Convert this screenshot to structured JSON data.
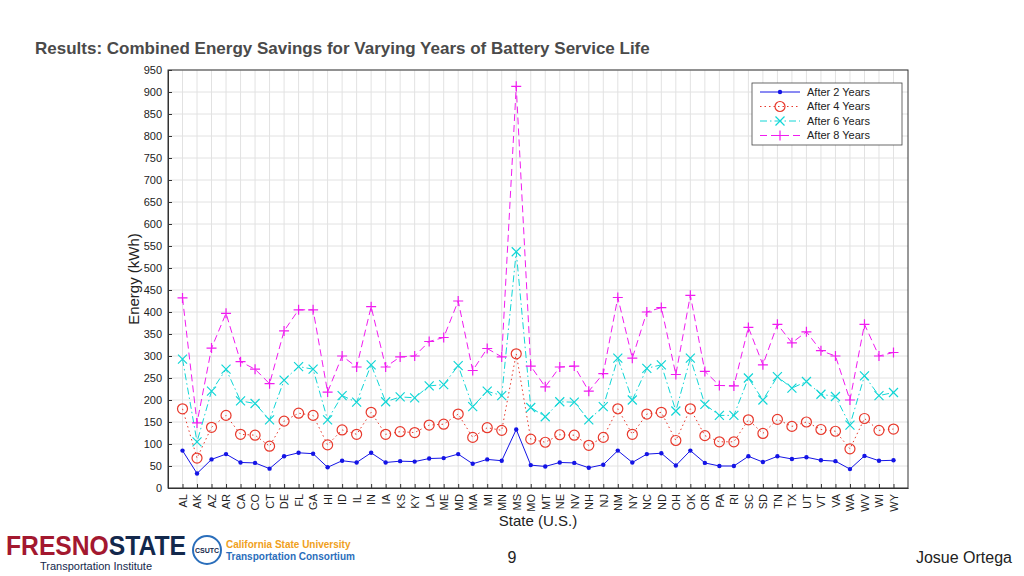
{
  "chart_data": {
    "type": "line",
    "title": "Results: Combined Energy Savings for Varying Years of Battery Service Life",
    "x_label": "State (U.S.)",
    "y_label": "Energy (kWh)",
    "categories": [
      "AL",
      "AK",
      "AZ",
      "AR",
      "CA",
      "CO",
      "CT",
      "DE",
      "FL",
      "GA",
      "HI",
      "ID",
      "IL",
      "IN",
      "IA",
      "KS",
      "KY",
      "LA",
      "ME",
      "MD",
      "MA",
      "MI",
      "MN",
      "MS",
      "MO",
      "MT",
      "NE",
      "NV",
      "NH",
      "NJ",
      "NM",
      "NY",
      "NC",
      "ND",
      "OH",
      "OK",
      "OR",
      "PA",
      "RI",
      "SC",
      "SD",
      "TN",
      "TX",
      "UT",
      "VT",
      "VA",
      "WA",
      "WV",
      "WI",
      "WY"
    ],
    "series": [
      {
        "name": "After 2 Years",
        "color": "#1414e6",
        "marker": "point",
        "line_style": "solid",
        "values": [
          85,
          33,
          65,
          77,
          58,
          57,
          44,
          72,
          80,
          78,
          47,
          62,
          58,
          80,
          58,
          61,
          60,
          67,
          68,
          77,
          55,
          65,
          62,
          133,
          52,
          49,
          58,
          57,
          46,
          53,
          85,
          58,
          77,
          79,
          51,
          85,
          57,
          50,
          50,
          72,
          59,
          72,
          66,
          70,
          63,
          61,
          43,
          73,
          62,
          63
        ]
      },
      {
        "name": "After 4 Years",
        "color": "#e8392c",
        "marker": "circle",
        "line_style": "dotted",
        "values": [
          180,
          68,
          138,
          165,
          122,
          120,
          95,
          152,
          170,
          165,
          98,
          132,
          122,
          172,
          122,
          128,
          126,
          143,
          145,
          168,
          115,
          137,
          131,
          305,
          111,
          104,
          121,
          120,
          97,
          115,
          180,
          122,
          168,
          172,
          108,
          180,
          119,
          105,
          105,
          155,
          124,
          156,
          140,
          150,
          133,
          129,
          89,
          158,
          131,
          134
        ]
      },
      {
        "name": "After 6 Years",
        "color": "#12d6d6",
        "marker": "x",
        "line_style": "dashdot",
        "values": [
          293,
          105,
          220,
          270,
          198,
          192,
          155,
          245,
          276,
          270,
          155,
          210,
          195,
          280,
          196,
          207,
          205,
          232,
          235,
          278,
          185,
          220,
          210,
          537,
          183,
          162,
          196,
          195,
          155,
          185,
          295,
          200,
          272,
          280,
          175,
          295,
          190,
          165,
          165,
          250,
          200,
          253,
          227,
          242,
          213,
          208,
          143,
          255,
          210,
          217
        ]
      },
      {
        "name": "After 8 Years",
        "color": "#f01cf0",
        "marker": "plus",
        "line_style": "dashed",
        "values": [
          432,
          148,
          318,
          397,
          287,
          270,
          237,
          357,
          405,
          405,
          218,
          300,
          275,
          412,
          275,
          298,
          300,
          333,
          342,
          425,
          267,
          317,
          298,
          913,
          277,
          230,
          275,
          277,
          220,
          260,
          433,
          295,
          400,
          410,
          258,
          438,
          265,
          233,
          232,
          365,
          280,
          372,
          330,
          355,
          312,
          300,
          200,
          372,
          300,
          308
        ]
      }
    ],
    "ylim": [
      0,
      950
    ],
    "yticks": [
      0,
      50,
      100,
      150,
      200,
      250,
      300,
      350,
      400,
      450,
      500,
      550,
      600,
      650,
      700,
      750,
      800,
      850,
      900,
      950
    ],
    "grid": true,
    "legend": "northeast"
  },
  "footer": {
    "logo_left": {
      "parts": [
        "FRESNO",
        "STATE"
      ],
      "subtitle": "Transportation Institute"
    },
    "logo_right": {
      "badge": "CSUTC",
      "line1": "California State University",
      "line2": "Transportation Consortium"
    },
    "page_number": "9",
    "author": "Josue Ortega"
  }
}
